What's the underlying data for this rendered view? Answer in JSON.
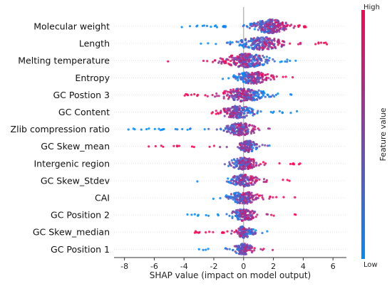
{
  "chart_data": {
    "type": "scatter",
    "subtype": "shap-beeswarm",
    "features": [
      {
        "name": "Molecular weight",
        "min": -4.3,
        "max": 4.3,
        "center": 1.8,
        "spread": 1.1,
        "density": 1.0,
        "high_side": "positive"
      },
      {
        "name": "Length",
        "min": -3.0,
        "max": 6.0,
        "center": 1.2,
        "spread": 1.5,
        "density": 0.8,
        "high_side": "positive"
      },
      {
        "name": "Melting temperature",
        "min": -5.2,
        "max": 3.8,
        "center": 0.2,
        "spread": 1.5,
        "density": 1.0,
        "high_side": "negative"
      },
      {
        "name": "Entropy",
        "min": -1.8,
        "max": 3.6,
        "center": 0.6,
        "spread": 1.1,
        "density": 0.7,
        "high_side": "positive"
      },
      {
        "name": "GC Postion 3",
        "min": -4.0,
        "max": 3.5,
        "center": 0.0,
        "spread": 1.4,
        "density": 0.9,
        "high_side": "negative"
      },
      {
        "name": "GC Content",
        "min": -2.5,
        "max": 3.6,
        "center": -0.4,
        "spread": 1.1,
        "density": 0.7,
        "high_side": "negative"
      },
      {
        "name": "Zlib compression ratio",
        "min": -8.0,
        "max": 2.8,
        "center": -0.2,
        "spread": 1.0,
        "density": 0.75,
        "high_side": "positive"
      },
      {
        "name": "GC Skew_mean",
        "min": -6.5,
        "max": 2.2,
        "center": 0.3,
        "spread": 0.6,
        "density": 0.55,
        "high_side": "negative"
      },
      {
        "name": "Intergenic region",
        "min": -2.2,
        "max": 4.0,
        "center": 0.0,
        "spread": 0.9,
        "density": 0.65,
        "high_side": "positive"
      },
      {
        "name": "GC Skew_Stdev",
        "min": -3.2,
        "max": 3.6,
        "center": 0.0,
        "spread": 0.9,
        "density": 0.65,
        "high_side": "positive"
      },
      {
        "name": "CAI",
        "min": -2.5,
        "max": 3.8,
        "center": 0.0,
        "spread": 1.0,
        "density": 0.65,
        "high_side": "positive"
      },
      {
        "name": "GC Position 2",
        "min": -4.0,
        "max": 3.8,
        "center": 0.0,
        "spread": 0.8,
        "density": 0.6,
        "high_side": "positive"
      },
      {
        "name": "GC Skew_median",
        "min": -3.3,
        "max": 1.6,
        "center": 0.0,
        "spread": 0.6,
        "density": 0.5,
        "high_side": "negative"
      },
      {
        "name": "GC Position 1",
        "min": -3.4,
        "max": 3.0,
        "center": 0.0,
        "spread": 0.6,
        "density": 0.5,
        "high_side": "positive"
      }
    ],
    "xlabel": "SHAP value (impact on model output)",
    "xlim": [
      -8.7,
      6.9
    ],
    "xticks": [
      -8,
      -6,
      -4,
      -2,
      0,
      2,
      4,
      6
    ],
    "zero_line": true,
    "colorbar": {
      "title": "Feature value",
      "high_label": "High",
      "low_label": "Low",
      "high_color": "#ff0052",
      "low_color": "#008bfb"
    },
    "grid": false
  }
}
